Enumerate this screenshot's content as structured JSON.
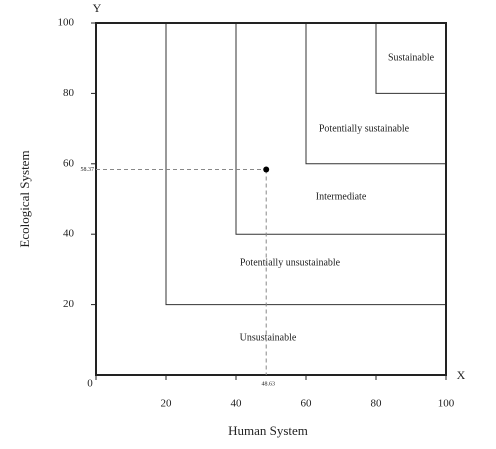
{
  "chart_data": {
    "type": "scatter",
    "x_label": "Human System",
    "y_label": "Ecological System",
    "x_axis_letter": "X",
    "y_axis_letter": "Y",
    "xlim": [
      0,
      100
    ],
    "ylim": [
      0,
      100
    ],
    "xticks": [
      0,
      20,
      40,
      60,
      80,
      100
    ],
    "yticks": [
      20,
      40,
      60,
      80,
      100
    ],
    "thresholds": [
      20,
      40,
      60,
      80
    ],
    "zones": [
      "Unsustainable",
      "Potentially unsustainable",
      "Intermediate",
      "Potentially sustainable",
      "Sustainable"
    ],
    "x": [
      48.63
    ],
    "values": [
      58.37
    ],
    "x_value_labels": [
      "48.63"
    ],
    "value_labels": [
      "58.37"
    ],
    "color": "#000000"
  }
}
